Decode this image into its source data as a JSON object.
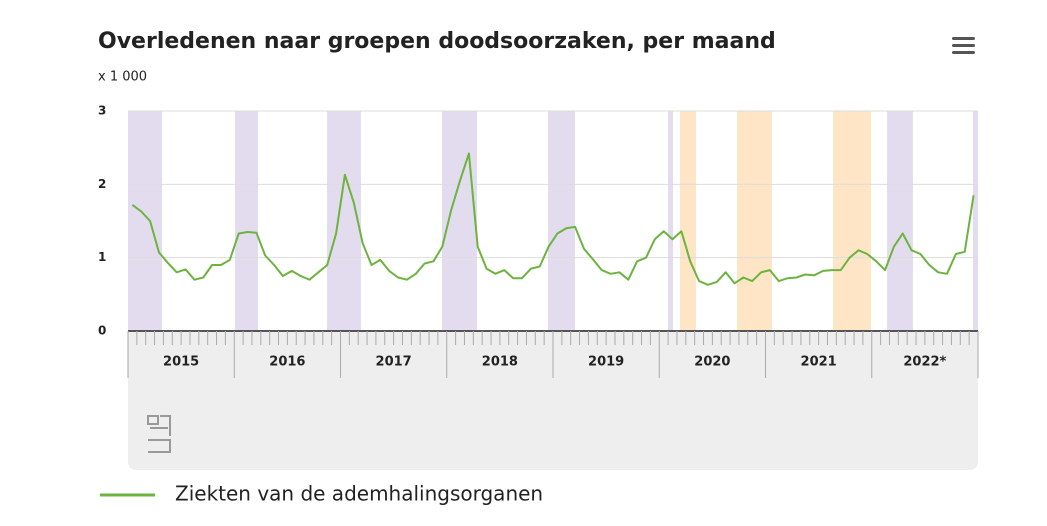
{
  "chart_data": {
    "type": "line",
    "title": "Overledenen naar groepen doodsoorzaken, per maand",
    "y_unit": "x 1 000",
    "categories": [
      "2015",
      null,
      null,
      null,
      null,
      null,
      null,
      null,
      null,
      null,
      null,
      null,
      "2016",
      null,
      null,
      null,
      null,
      null,
      null,
      null,
      null,
      null,
      null,
      null,
      "2017",
      null,
      null,
      null,
      null,
      null,
      null,
      null,
      null,
      null,
      null,
      null,
      "2018",
      null,
      null,
      null,
      null,
      null,
      null,
      null,
      null,
      null,
      null,
      null,
      "2019",
      null,
      null,
      null,
      null,
      null,
      null,
      null,
      null,
      null,
      null,
      null,
      "2020",
      null,
      null,
      null,
      null,
      null,
      null,
      null,
      null,
      null,
      null,
      null,
      "2021",
      null,
      null,
      null,
      null,
      null,
      null,
      null,
      null,
      null,
      null,
      null,
      "2022*",
      null,
      null,
      null,
      null,
      null,
      null,
      null,
      null,
      null,
      null,
      null
    ],
    "series": [
      {
        "name": "Ziekten van de ademhalingsorganen",
        "color": "#6db33f",
        "values": [
          1.72,
          1.63,
          1.5,
          1.07,
          0.93,
          0.8,
          0.84,
          0.7,
          0.73,
          0.9,
          0.9,
          0.97,
          1.33,
          1.35,
          1.34,
          1.03,
          0.9,
          0.75,
          0.82,
          0.75,
          0.7,
          0.8,
          0.9,
          1.33,
          2.13,
          1.75,
          1.2,
          0.9,
          0.97,
          0.82,
          0.73,
          0.7,
          0.78,
          0.92,
          0.95,
          1.15,
          1.65,
          2.05,
          2.42,
          1.15,
          0.85,
          0.78,
          0.83,
          0.72,
          0.72,
          0.85,
          0.88,
          1.15,
          1.33,
          1.4,
          1.42,
          1.12,
          0.98,
          0.83,
          0.78,
          0.8,
          0.7,
          0.95,
          1.0,
          1.25,
          1.36,
          1.25,
          1.36,
          0.95,
          0.68,
          0.63,
          0.67,
          0.8,
          0.65,
          0.73,
          0.68,
          0.8,
          0.83,
          0.68,
          0.72,
          0.73,
          0.77,
          0.76,
          0.82,
          0.83,
          0.83,
          1.0,
          1.1,
          1.05,
          0.95,
          0.83,
          1.15,
          1.33,
          1.1,
          1.05,
          0.9,
          0.8,
          0.78,
          1.05,
          1.08,
          1.85
        ]
      }
    ],
    "ylim": [
      0,
      3
    ],
    "yticks": [
      0,
      1,
      2,
      3
    ],
    "grid": true
  }
}
